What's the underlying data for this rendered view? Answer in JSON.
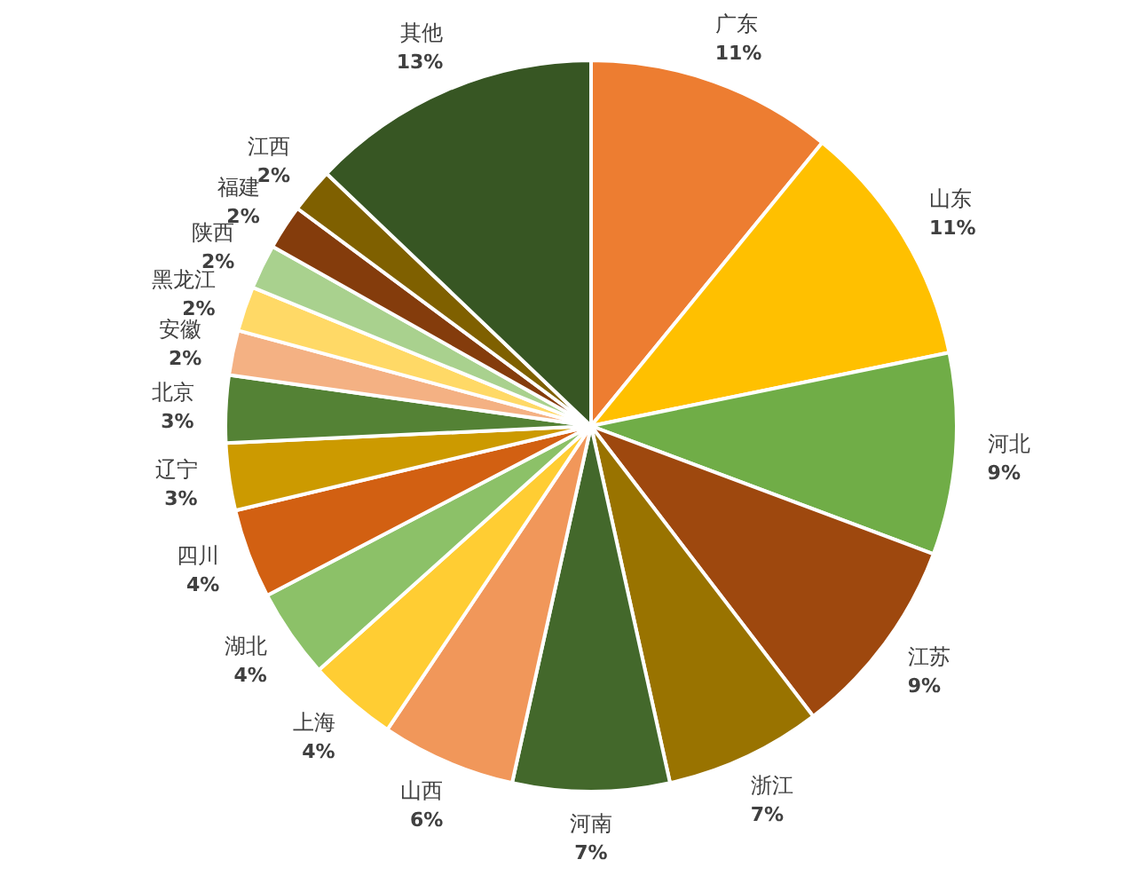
{
  "chart_data": {
    "type": "pie",
    "categories": [
      "广东",
      "山东",
      "河北",
      "江苏",
      "浙江",
      "河南",
      "山西",
      "上海",
      "湖北",
      "四川",
      "辽宁",
      "北京",
      "安徽",
      "黑龙江",
      "陕西",
      "福建",
      "江西",
      "其他"
    ],
    "values": [
      11,
      11,
      9,
      9,
      7,
      7,
      6,
      4,
      4,
      4,
      3,
      3,
      2,
      2,
      2,
      2,
      2,
      13
    ],
    "value_labels": [
      "11%",
      "11%",
      "9%",
      "9%",
      "7%",
      "7%",
      "6%",
      "4%",
      "4%",
      "4%",
      "3%",
      "3%",
      "2%",
      "2%",
      "2%",
      "2%",
      "2%",
      "13%"
    ],
    "colors": [
      "#ed7d31",
      "#ffc000",
      "#70ad47",
      "#9e480e",
      "#997300",
      "#43682b",
      "#f1975a",
      "#ffcd33",
      "#8cc168",
      "#d26012",
      "#cc9a00",
      "#548235",
      "#f4b183",
      "#ffd966",
      "#a9d18e",
      "#843c0c",
      "#7f6000",
      "#375623"
    ]
  }
}
